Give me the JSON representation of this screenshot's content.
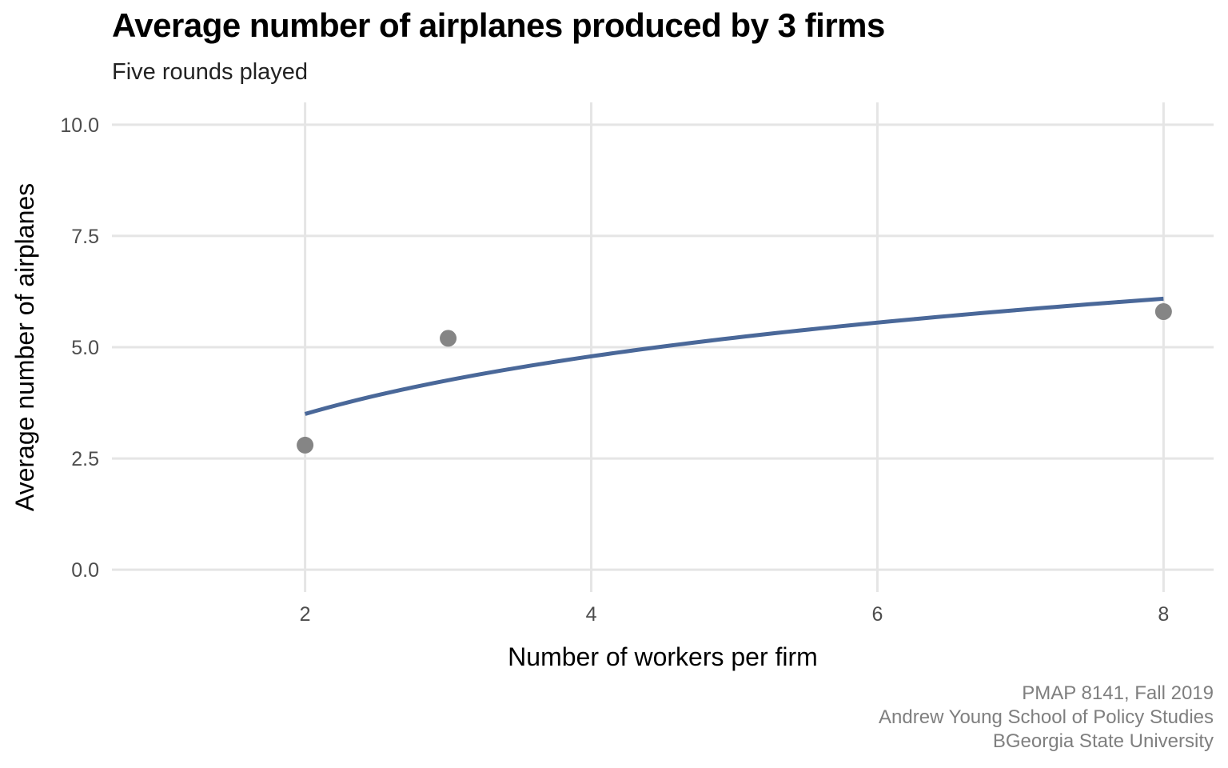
{
  "chart_data": {
    "type": "scatter",
    "title": "Average number of airplanes produced by 3 firms",
    "subtitle": "Five rounds played",
    "xlabel": "Number of workers per firm",
    "ylabel": "Average number of airplanes",
    "xlim": [
      0.65,
      8.35
    ],
    "ylim": [
      -0.5,
      10.5
    ],
    "x_ticks": [
      2,
      4,
      6,
      8
    ],
    "y_ticks": [
      0.0,
      2.5,
      5.0,
      7.5,
      10.0
    ],
    "x_tick_labels": [
      "2",
      "4",
      "6",
      "8"
    ],
    "y_tick_labels": [
      "0.0",
      "2.5",
      "5.0",
      "7.5",
      "10.0"
    ],
    "grid": true,
    "points": [
      {
        "x": 2,
        "y": 2.8
      },
      {
        "x": 3,
        "y": 5.2
      },
      {
        "x": 8,
        "y": 5.8
      }
    ],
    "trend_line": {
      "type": "logarithmic",
      "x_range": [
        2,
        8
      ],
      "values": [
        {
          "x": 2,
          "y": 3.5
        },
        {
          "x": 3,
          "y": 4.23
        },
        {
          "x": 4,
          "y": 4.79
        },
        {
          "x": 5,
          "y": 5.19
        },
        {
          "x": 6,
          "y": 5.55
        },
        {
          "x": 7,
          "y": 5.84
        },
        {
          "x": 8,
          "y": 6.09
        }
      ]
    },
    "colors": {
      "points": "#858585",
      "line": "#4a6899",
      "grid": "#e5e5e5",
      "tick_text": "#4d4d4d",
      "axis_title": "#000000"
    }
  },
  "caption": {
    "line1": "PMAP 8141, Fall 2019",
    "line2": "Andrew Young School of Policy Studies",
    "line3": "BGeorgia State University"
  }
}
